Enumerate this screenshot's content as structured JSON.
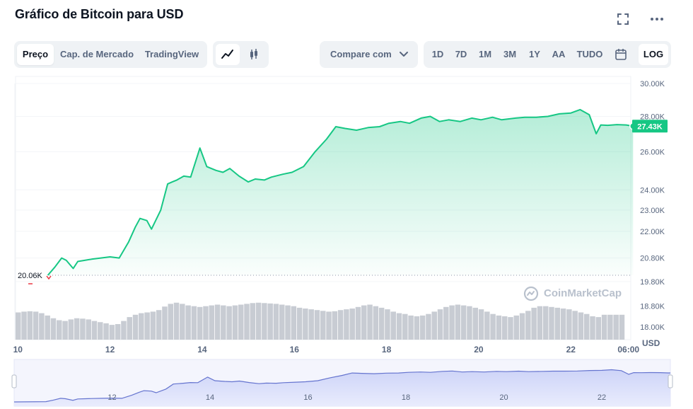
{
  "title": "Gráfico de Bitcoin para USD",
  "icons": {
    "fullscreen": "fullscreen-icon",
    "more": "more-horizontal-icon"
  },
  "tabs": [
    {
      "label": "Preço",
      "active": true
    },
    {
      "label": "Cap. de Mercado",
      "active": false
    },
    {
      "label": "TradingView",
      "active": false
    }
  ],
  "chart_types": [
    {
      "icon": "line-chart-icon",
      "active": true
    },
    {
      "icon": "candlestick-icon",
      "active": false
    }
  ],
  "compare": {
    "label": "Compare com",
    "icon": "chevron-down-icon"
  },
  "ranges": [
    {
      "label": "1D",
      "active": false
    },
    {
      "label": "7D",
      "active": false
    },
    {
      "label": "1M",
      "active": false
    },
    {
      "label": "3M",
      "active": false
    },
    {
      "label": "1Y",
      "active": false
    },
    {
      "label": "AA",
      "active": false
    },
    {
      "label": "TUDO",
      "active": false
    }
  ],
  "calendar_icon": "calendar-icon",
  "log_label": "LOG",
  "currency_label": "USD",
  "watermark": "CoinMarketCap",
  "colors": {
    "line": "#16c784",
    "area_top": "#16c784",
    "volume": "#c8ccd3",
    "nav_fill": "#dde1fb",
    "nav_line": "#6574cf",
    "start_marker": "#ea3943"
  },
  "chart_data": {
    "type": "area",
    "scale": "log",
    "title": "Gráfico de Bitcoin para USD",
    "ylabel": "USD",
    "y_ticks": [
      "30.00K",
      "28.00K",
      "26.00K",
      "24.00K",
      "23.00K",
      "22.00K",
      "20.80K",
      "19.80K",
      "18.80K",
      "18.00K"
    ],
    "y_tick_values": [
      30000,
      28000,
      26000,
      24000,
      23000,
      22000,
      20800,
      19800,
      18800,
      18000
    ],
    "x_ticks": [
      "10",
      "12",
      "14",
      "16",
      "18",
      "20",
      "22",
      "06:00"
    ],
    "x_tick_values": [
      10,
      12,
      14,
      16,
      18,
      20,
      22,
      23.25
    ],
    "nav_x_ticks": [
      "12",
      "14",
      "16",
      "18",
      "20",
      "22"
    ],
    "current_price_label": "27.43K",
    "current_price": 27430,
    "start_price_label": "20.06K",
    "start_price": 20060,
    "series": [
      {
        "x": [
          10.65,
          10.8,
          10.95,
          11.05,
          11.2,
          11.3,
          11.45,
          11.6,
          11.8,
          12.0,
          12.2,
          12.4,
          12.55,
          12.65,
          12.8,
          12.9,
          13.1,
          13.25,
          13.35,
          13.45,
          13.6,
          13.75,
          13.95,
          14.1,
          14.3,
          14.45,
          14.6,
          14.8,
          15.0,
          15.15,
          15.35,
          15.5,
          15.75,
          15.95,
          16.2,
          16.45,
          16.7,
          16.9,
          17.1,
          17.35,
          17.6,
          17.85,
          18.05,
          18.3,
          18.5,
          18.75,
          18.95,
          19.15,
          19.35,
          19.6,
          19.85,
          20.05,
          20.3,
          20.5,
          20.8,
          21.0,
          21.25,
          21.5,
          21.75,
          22.0,
          22.2,
          22.4,
          22.55,
          22.65,
          22.8,
          23.0,
          23.2,
          23.35
        ],
        "y": [
          20060,
          20400,
          20800,
          20700,
          20350,
          20650,
          20700,
          20750,
          20800,
          20850,
          20800,
          21500,
          22200,
          22600,
          22500,
          22100,
          23000,
          24300,
          24400,
          24500,
          24700,
          24650,
          26200,
          25200,
          25000,
          24900,
          25100,
          24700,
          24400,
          24550,
          24500,
          24650,
          24800,
          24900,
          25200,
          26000,
          26700,
          27400,
          27300,
          27200,
          27350,
          27400,
          27600,
          27700,
          27600,
          27900,
          28000,
          27700,
          27800,
          27700,
          27900,
          27800,
          27950,
          27800,
          27900,
          27950,
          27950,
          28000,
          28150,
          28200,
          28400,
          28100,
          27000,
          27500,
          27480,
          27520,
          27500,
          27430
        ]
      }
    ],
    "volume": [
      0.7,
      0.72,
      0.73,
      0.72,
      0.68,
      0.62,
      0.55,
      0.5,
      0.48,
      0.52,
      0.55,
      0.54,
      0.52,
      0.48,
      0.45,
      0.42,
      0.38,
      0.4,
      0.48,
      0.58,
      0.64,
      0.68,
      0.7,
      0.72,
      0.76,
      0.85,
      0.92,
      0.95,
      0.92,
      0.88,
      0.86,
      0.84,
      0.86,
      0.88,
      0.9,
      0.88,
      0.86,
      0.88,
      0.9,
      0.92,
      0.94,
      0.95,
      0.94,
      0.93,
      0.92,
      0.9,
      0.88,
      0.86,
      0.82,
      0.8,
      0.78,
      0.76,
      0.74,
      0.72,
      0.73,
      0.76,
      0.78,
      0.8,
      0.84,
      0.88,
      0.9,
      0.86,
      0.82,
      0.78,
      0.72,
      0.68,
      0.66,
      0.62,
      0.6,
      0.62,
      0.66,
      0.72,
      0.78,
      0.84,
      0.88,
      0.9,
      0.88,
      0.86,
      0.82,
      0.78,
      0.72,
      0.66,
      0.62,
      0.6,
      0.58,
      0.62,
      0.68,
      0.74,
      0.82,
      0.86,
      0.86,
      0.84,
      0.82,
      0.8,
      0.78,
      0.74,
      0.7,
      0.66,
      0.6,
      0.58,
      0.64,
      0.64,
      0.64,
      0.64
    ]
  }
}
